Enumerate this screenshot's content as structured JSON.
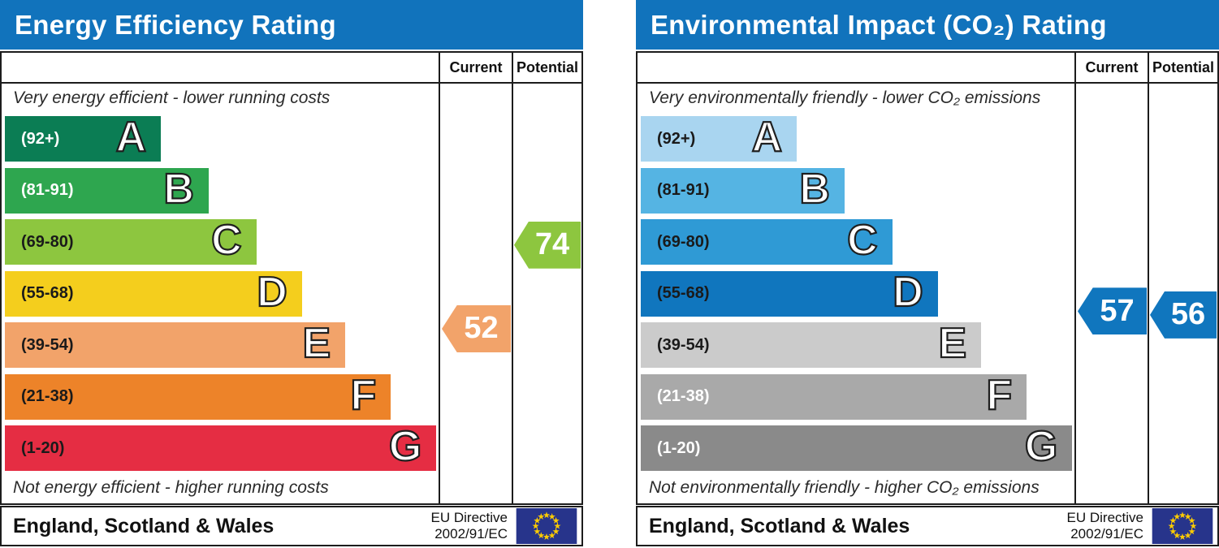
{
  "theme": {
    "title_bar_color": "#1173BC",
    "border_color": "#1c1c1c",
    "eu_flag_background": "#27348B",
    "eu_flag_star_color": "#FFCC00"
  },
  "panels": [
    {
      "title": "Energy Efficiency Rating",
      "columns": {
        "current": "Current",
        "potential": "Potential"
      },
      "top_caption": "Very energy efficient - lower running costs",
      "bottom_caption": "Not energy efficient - higher running costs",
      "region_label": "England, Scotland & Wales",
      "directive_line1": "EU Directive",
      "directive_line2": "2002/91/EC",
      "bands": [
        {
          "letter": "A",
          "range_label": "(92+)",
          "min": 92,
          "max": 100,
          "color": "#0B7D54",
          "label_color": "#FFFFFF",
          "width_pct": 36
        },
        {
          "letter": "B",
          "range_label": "(81-91)",
          "min": 81,
          "max": 91,
          "color": "#2EA64F",
          "label_color": "#FFFFFF",
          "width_pct": 47
        },
        {
          "letter": "C",
          "range_label": "(69-80)",
          "min": 69,
          "max": 80,
          "color": "#8DC63F",
          "label_color": "#1a1a1a",
          "width_pct": 58
        },
        {
          "letter": "D",
          "range_label": "(55-68)",
          "min": 55,
          "max": 68,
          "color": "#F4CE1D",
          "label_color": "#1a1a1a",
          "width_pct": 68.5
        },
        {
          "letter": "E",
          "range_label": "(39-54)",
          "min": 39,
          "max": 54,
          "color": "#F2A36A",
          "label_color": "#1a1a1a",
          "width_pct": 78.5
        },
        {
          "letter": "F",
          "range_label": "(21-38)",
          "min": 21,
          "max": 38,
          "color": "#ED8329",
          "label_color": "#1a1a1a",
          "width_pct": 89
        },
        {
          "letter": "G",
          "range_label": "(1-20)",
          "min": 1,
          "max": 20,
          "color": "#E52D43",
          "label_color": "#1a1a1a",
          "width_pct": 99.5
        }
      ],
      "current": {
        "value": 52,
        "band": "E",
        "color": "#F2A36A"
      },
      "potential": {
        "value": 74,
        "band": "C",
        "color": "#8DC63F"
      }
    },
    {
      "title": "Environmental Impact (CO₂) Rating",
      "columns": {
        "current": "Current",
        "potential": "Potential"
      },
      "top_caption": "Very environmentally friendly - lower CO₂ emissions",
      "bottom_caption": "Not environmentally friendly - higher CO₂ emissions",
      "region_label": "England, Scotland & Wales",
      "directive_line1": "EU Directive",
      "directive_line2": "2002/91/EC",
      "bands": [
        {
          "letter": "A",
          "range_label": "(92+)",
          "min": 92,
          "max": 100,
          "color": "#A9D5F0",
          "label_color": "#1a1a1a",
          "width_pct": 36
        },
        {
          "letter": "B",
          "range_label": "(81-91)",
          "min": 81,
          "max": 91,
          "color": "#55B4E3",
          "label_color": "#1a1a1a",
          "width_pct": 47
        },
        {
          "letter": "C",
          "range_label": "(69-80)",
          "min": 69,
          "max": 80,
          "color": "#2F9AD5",
          "label_color": "#1a1a1a",
          "width_pct": 58
        },
        {
          "letter": "D",
          "range_label": "(55-68)",
          "min": 55,
          "max": 68,
          "color": "#1076BE",
          "label_color": "#1a1a1a",
          "width_pct": 68.5
        },
        {
          "letter": "E",
          "range_label": "(39-54)",
          "min": 39,
          "max": 54,
          "color": "#CBCBCB",
          "label_color": "#1a1a1a",
          "width_pct": 78.5
        },
        {
          "letter": "F",
          "range_label": "(21-38)",
          "min": 21,
          "max": 38,
          "color": "#A9A9A9",
          "label_color": "#FFFFFF",
          "width_pct": 89
        },
        {
          "letter": "G",
          "range_label": "(1-20)",
          "min": 1,
          "max": 20,
          "color": "#8A8A8A",
          "label_color": "#FFFFFF",
          "width_pct": 99.5
        }
      ],
      "current": {
        "value": 57,
        "band": "D",
        "color": "#1076BE"
      },
      "potential": {
        "value": 56,
        "band": "D",
        "color": "#1076BE"
      }
    }
  ],
  "chart_data": [
    {
      "type": "bar",
      "title": "Energy Efficiency Rating",
      "orientation": "horizontal",
      "categories": [
        "A",
        "B",
        "C",
        "D",
        "E",
        "F",
        "G"
      ],
      "category_ranges": [
        "92+",
        "81-91",
        "69-80",
        "55-68",
        "39-54",
        "21-38",
        "1-20"
      ],
      "band_colors": [
        "#0B7D54",
        "#2EA64F",
        "#8DC63F",
        "#F4CE1D",
        "#F2A36A",
        "#ED8329",
        "#E52D43"
      ],
      "series": [
        {
          "name": "Current",
          "values": [
            52
          ],
          "band": "E"
        },
        {
          "name": "Potential",
          "values": [
            74
          ],
          "band": "C"
        }
      ],
      "top_caption": "Very energy efficient - lower running costs",
      "bottom_caption": "Not energy efficient - higher running costs",
      "footer": "England, Scotland & Wales",
      "directive": "EU Directive 2002/91/EC",
      "scale_range": [
        1,
        100
      ]
    },
    {
      "type": "bar",
      "title": "Environmental Impact (CO₂) Rating",
      "orientation": "horizontal",
      "categories": [
        "A",
        "B",
        "C",
        "D",
        "E",
        "F",
        "G"
      ],
      "category_ranges": [
        "92+",
        "81-91",
        "69-80",
        "55-68",
        "39-54",
        "21-38",
        "1-20"
      ],
      "band_colors": [
        "#A9D5F0",
        "#55B4E3",
        "#2F9AD5",
        "#1076BE",
        "#CBCBCB",
        "#A9A9A9",
        "#8A8A8A"
      ],
      "series": [
        {
          "name": "Current",
          "values": [
            57
          ],
          "band": "D"
        },
        {
          "name": "Potential",
          "values": [
            56
          ],
          "band": "D"
        }
      ],
      "top_caption": "Very environmentally friendly - lower CO₂ emissions",
      "bottom_caption": "Not environmentally friendly - higher CO₂ emissions",
      "footer": "England, Scotland & Wales",
      "directive": "EU Directive 2002/91/EC",
      "scale_range": [
        1,
        100
      ]
    }
  ]
}
